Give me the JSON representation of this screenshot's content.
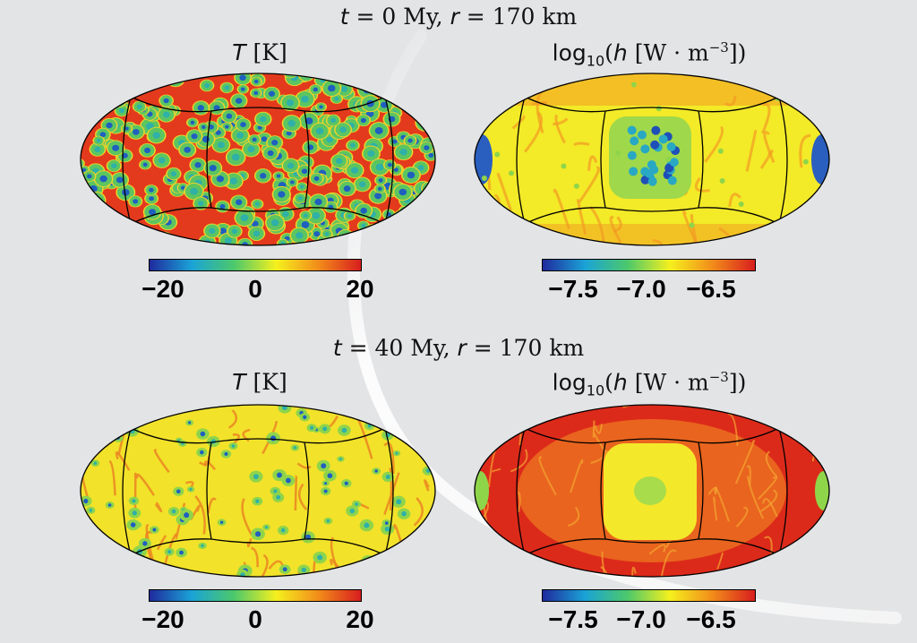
{
  "panels_rows": [
    {
      "heading": {
        "t_label": "t",
        "t_eq": " = 0 My, ",
        "r_label": "r",
        "r_eq": " = 170 km"
      },
      "left": {
        "var": "T",
        "unit": " [K]"
      },
      "right": {
        "prefix": "log",
        "sub": "10",
        "var": "h",
        "unit": " [W · m",
        "exp": "−3",
        "close": "])"
      }
    },
    {
      "heading": {
        "t_label": "t",
        "t_eq": " = 40 My, ",
        "r_label": "r",
        "r_eq": " = 170 km"
      },
      "left": {
        "var": "T",
        "unit": " [K]"
      },
      "right": {
        "prefix": "log",
        "sub": "10",
        "var": "h",
        "unit": " [W · m",
        "exp": "−3",
        "close": "])"
      }
    }
  ],
  "colorbars": {
    "temperature": {
      "ticks": [
        "−20",
        "0",
        "20"
      ],
      "range": [
        -20,
        20
      ],
      "tick_values": [
        -20,
        0,
        20
      ]
    },
    "heating": {
      "ticks": [
        "−7.5",
        "−7.0",
        "−6.5"
      ],
      "range": [
        -7.8,
        -6.2
      ],
      "tick_values": [
        -7.5,
        -7.0,
        -6.5
      ]
    }
  },
  "colormap": [
    "#1f2a9e",
    "#1aa3d6",
    "#4cc86b",
    "#f5f01e",
    "#f28c1a",
    "#d81e1e"
  ],
  "chart_data": [
    {
      "type": "heatmap",
      "projection": "Mollweide",
      "title": "T [K]",
      "time": "t = 0 My",
      "radius": "r = 170 km",
      "colorbar_range": [
        -20,
        20
      ],
      "pattern": "cellular"
    },
    {
      "type": "heatmap",
      "projection": "Mollweide",
      "title": "log10(h [W · m−3])",
      "time": "t = 0 My",
      "radius": "r = 170 km",
      "colorbar_range": [
        -7.8,
        -6.2
      ],
      "pattern": "mostly yellow, blue spots at center and edges"
    },
    {
      "type": "heatmap",
      "projection": "Mollweide",
      "title": "T [K]",
      "time": "t = 40 My",
      "radius": "r = 170 km",
      "colorbar_range": [
        -20,
        20
      ],
      "pattern": "yellow with green/blue cells and red plumes"
    },
    {
      "type": "heatmap",
      "projection": "Mollweide",
      "title": "log10(h [W · m−3])",
      "time": "t = 40 My",
      "radius": "r = 170 km",
      "colorbar_range": [
        -7.8,
        -6.2
      ],
      "pattern": "mostly red, yellow center region"
    }
  ]
}
